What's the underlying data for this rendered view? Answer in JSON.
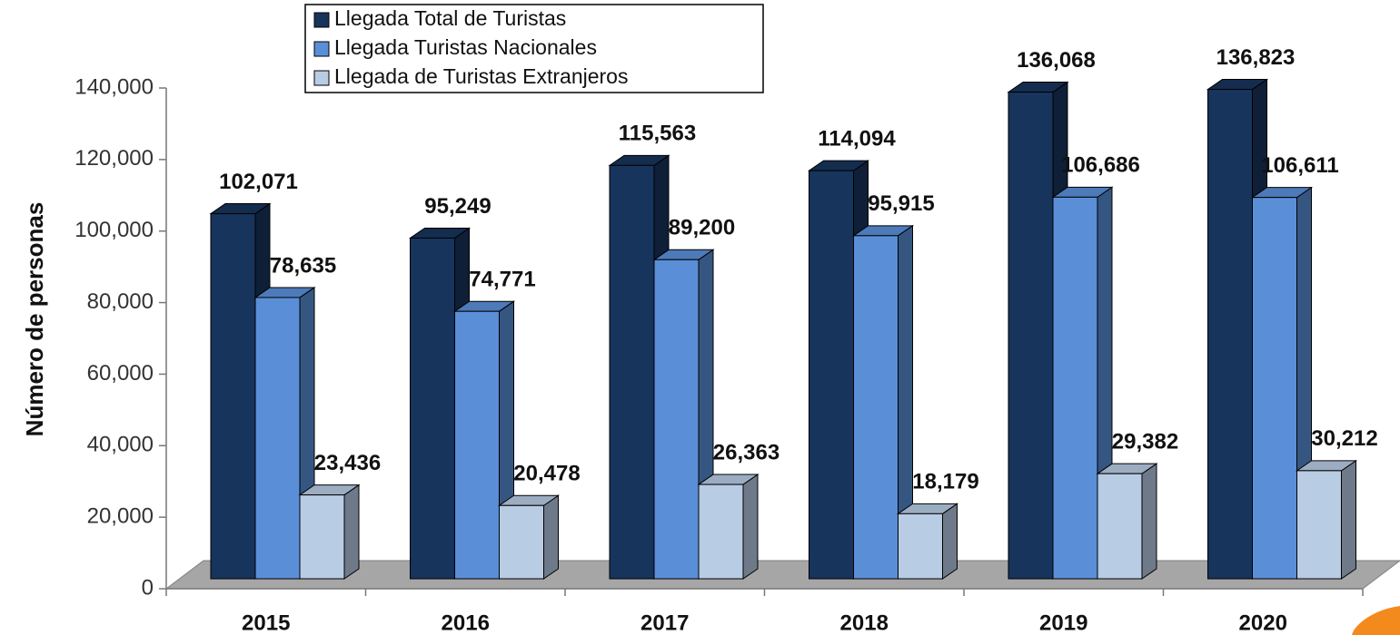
{
  "chart_data": {
    "type": "bar3d",
    "y_label": "Número de personas",
    "categories": [
      "2015",
      "2016",
      "2017",
      "2018",
      "2019",
      "2020"
    ],
    "series": [
      {
        "name": "Llegada Total de Turistas",
        "color": "#17345c",
        "values": [
          102071,
          95249,
          115563,
          114094,
          136068,
          136823
        ],
        "value_labels": [
          "102,071",
          "95,249",
          "115,563",
          "114,094",
          "136,068",
          "136,823"
        ]
      },
      {
        "name": "Llegada  Turistas Nacionales",
        "color": "#5a8fd8",
        "values": [
          78635,
          74771,
          89200,
          95915,
          106686,
          106611
        ],
        "value_labels": [
          "78,635",
          "74,771",
          "89,200",
          "95,915",
          "106,686",
          "106,611"
        ]
      },
      {
        "name": "Llegada de Turistas Extranjeros",
        "color": "#b8cce4",
        "values": [
          23436,
          20478,
          26363,
          18179,
          29382,
          30212
        ],
        "value_labels": [
          "23,436",
          "20,478",
          "26,363",
          "18,179",
          "29,382",
          "30,212"
        ]
      }
    ],
    "ylim": [
      0,
      140000
    ],
    "yticks": [
      0,
      {
        "value": 20000,
        "label": "20,000"
      },
      {
        "value": 40000,
        "label": "40,000"
      },
      {
        "value": 60000,
        "label": "60,000"
      },
      {
        "value": 80000,
        "label": "80,000"
      },
      {
        "value": 100000,
        "label": "100,000"
      },
      {
        "value": 120000,
        "label": "120,000"
      },
      {
        "value": 140000,
        "label": "140,000"
      }
    ],
    "legend": "top"
  }
}
